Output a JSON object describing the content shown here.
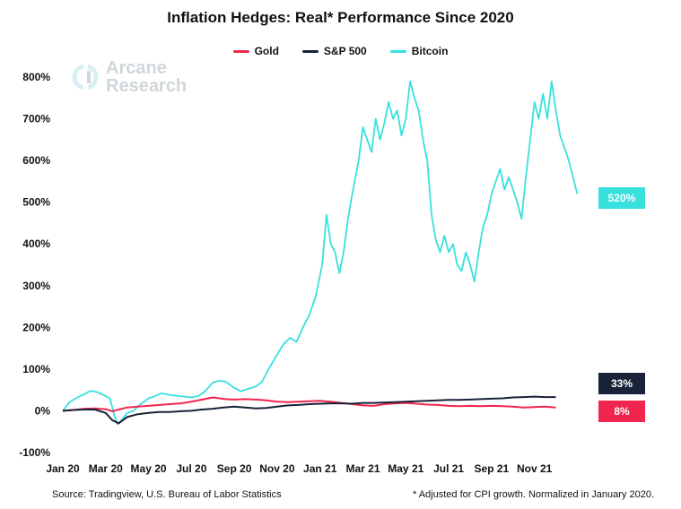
{
  "chart_data": {
    "type": "line",
    "title": "Inflation Hedges: Real* Performance Since 2020",
    "xlabel": "",
    "ylabel": "",
    "ylim": [
      -100,
      800
    ],
    "y_ticks": [
      -100,
      0,
      100,
      200,
      300,
      400,
      500,
      600,
      700,
      800
    ],
    "y_tick_labels": [
      "-100%",
      "0%",
      "100%",
      "200%",
      "300%",
      "400%",
      "500%",
      "600%",
      "700%",
      "800%"
    ],
    "x_tick_labels": [
      "Jan 20",
      "Mar 20",
      "May 20",
      "Jul 20",
      "Sep 20",
      "Nov 20",
      "Jan 21",
      "Mar 21",
      "May 21",
      "Jul 21",
      "Sep 21",
      "Nov 21"
    ],
    "x_tick_months": [
      0,
      2,
      4,
      6,
      8,
      10,
      12,
      14,
      16,
      18,
      20,
      22
    ],
    "x_range_months": [
      0,
      23.1
    ],
    "legend_position": "top-center",
    "series": [
      {
        "name": "Gold",
        "color": "#f0264f",
        "end_label": "8%",
        "points": [
          [
            0,
            0
          ],
          [
            0.5,
            2
          ],
          [
            1,
            5
          ],
          [
            1.5,
            6
          ],
          [
            2,
            4
          ],
          [
            2.3,
            -1
          ],
          [
            2.6,
            3
          ],
          [
            3,
            8
          ],
          [
            3.5,
            10
          ],
          [
            4,
            12
          ],
          [
            4.5,
            14
          ],
          [
            5,
            16
          ],
          [
            5.5,
            18
          ],
          [
            6,
            22
          ],
          [
            6.5,
            27
          ],
          [
            7,
            32
          ],
          [
            7.3,
            30
          ],
          [
            7.6,
            28
          ],
          [
            8,
            27
          ],
          [
            8.5,
            28
          ],
          [
            9,
            27
          ],
          [
            9.5,
            25
          ],
          [
            10,
            22
          ],
          [
            10.5,
            21
          ],
          [
            11,
            22
          ],
          [
            11.5,
            23
          ],
          [
            12,
            24
          ],
          [
            12.5,
            22
          ],
          [
            13,
            19
          ],
          [
            13.5,
            16
          ],
          [
            14,
            13
          ],
          [
            14.5,
            12
          ],
          [
            15,
            16
          ],
          [
            15.5,
            18
          ],
          [
            16,
            19
          ],
          [
            16.5,
            17
          ],
          [
            17,
            15
          ],
          [
            17.5,
            14
          ],
          [
            18,
            12
          ],
          [
            18.5,
            11
          ],
          [
            19,
            12
          ],
          [
            19.5,
            11
          ],
          [
            20,
            12
          ],
          [
            20.5,
            11
          ],
          [
            21,
            10
          ],
          [
            21.5,
            8
          ],
          [
            22,
            9
          ],
          [
            22.5,
            10
          ],
          [
            23,
            8
          ]
        ]
      },
      {
        "name": "S&P 500",
        "color": "#182238",
        "end_label": "33%",
        "points": [
          [
            0,
            0
          ],
          [
            0.5,
            2
          ],
          [
            1,
            3
          ],
          [
            1.5,
            3
          ],
          [
            2,
            -5
          ],
          [
            2.3,
            -22
          ],
          [
            2.6,
            -30
          ],
          [
            3,
            -15
          ],
          [
            3.5,
            -8
          ],
          [
            4,
            -5
          ],
          [
            4.5,
            -3
          ],
          [
            5,
            -3
          ],
          [
            5.5,
            -1
          ],
          [
            6,
            0
          ],
          [
            6.5,
            3
          ],
          [
            7,
            5
          ],
          [
            7.5,
            8
          ],
          [
            8,
            10
          ],
          [
            8.5,
            8
          ],
          [
            9,
            6
          ],
          [
            9.5,
            7
          ],
          [
            10,
            10
          ],
          [
            10.5,
            13
          ],
          [
            11,
            14
          ],
          [
            11.5,
            16
          ],
          [
            12,
            17
          ],
          [
            12.5,
            18
          ],
          [
            13,
            18
          ],
          [
            13.5,
            17
          ],
          [
            14,
            19
          ],
          [
            14.5,
            19
          ],
          [
            15,
            20
          ],
          [
            15.5,
            21
          ],
          [
            16,
            22
          ],
          [
            16.5,
            23
          ],
          [
            17,
            24
          ],
          [
            17.5,
            25
          ],
          [
            18,
            26
          ],
          [
            18.5,
            26
          ],
          [
            19,
            27
          ],
          [
            19.5,
            28
          ],
          [
            20,
            29
          ],
          [
            20.5,
            30
          ],
          [
            21,
            32
          ],
          [
            21.5,
            33
          ],
          [
            22,
            34
          ],
          [
            22.5,
            33
          ],
          [
            23,
            33
          ]
        ]
      },
      {
        "name": "Bitcoin",
        "color": "#38e0de",
        "end_label": "520%",
        "points": [
          [
            0,
            0
          ],
          [
            0.3,
            20
          ],
          [
            0.6,
            30
          ],
          [
            1,
            40
          ],
          [
            1.3,
            48
          ],
          [
            1.6,
            45
          ],
          [
            1.9,
            38
          ],
          [
            2.2,
            30
          ],
          [
            2.4,
            -10
          ],
          [
            2.55,
            -32
          ],
          [
            2.7,
            -25
          ],
          [
            3,
            -5
          ],
          [
            3.3,
            0
          ],
          [
            3.6,
            15
          ],
          [
            4,
            30
          ],
          [
            4.3,
            35
          ],
          [
            4.6,
            42
          ],
          [
            5,
            38
          ],
          [
            5.5,
            35
          ],
          [
            6,
            32
          ],
          [
            6.3,
            35
          ],
          [
            6.6,
            45
          ],
          [
            7,
            68
          ],
          [
            7.3,
            72
          ],
          [
            7.6,
            70
          ],
          [
            8,
            55
          ],
          [
            8.3,
            47
          ],
          [
            8.6,
            52
          ],
          [
            9,
            58
          ],
          [
            9.3,
            70
          ],
          [
            9.6,
            100
          ],
          [
            10,
            135
          ],
          [
            10.3,
            160
          ],
          [
            10.6,
            175
          ],
          [
            10.9,
            165
          ],
          [
            11.2,
            200
          ],
          [
            11.5,
            230
          ],
          [
            11.8,
            275
          ],
          [
            12.1,
            350
          ],
          [
            12.3,
            470
          ],
          [
            12.5,
            400
          ],
          [
            12.7,
            380
          ],
          [
            12.9,
            330
          ],
          [
            13.1,
            380
          ],
          [
            13.3,
            460
          ],
          [
            13.5,
            520
          ],
          [
            13.8,
            600
          ],
          [
            14,
            680
          ],
          [
            14.2,
            650
          ],
          [
            14.4,
            620
          ],
          [
            14.6,
            700
          ],
          [
            14.8,
            650
          ],
          [
            15,
            690
          ],
          [
            15.2,
            740
          ],
          [
            15.4,
            700
          ],
          [
            15.6,
            720
          ],
          [
            15.8,
            660
          ],
          [
            16,
            700
          ],
          [
            16.2,
            790
          ],
          [
            16.4,
            750
          ],
          [
            16.6,
            720
          ],
          [
            16.8,
            650
          ],
          [
            17,
            600
          ],
          [
            17.2,
            470
          ],
          [
            17.4,
            410
          ],
          [
            17.6,
            380
          ],
          [
            17.8,
            420
          ],
          [
            18,
            380
          ],
          [
            18.2,
            400
          ],
          [
            18.4,
            350
          ],
          [
            18.6,
            335
          ],
          [
            18.8,
            380
          ],
          [
            19,
            350
          ],
          [
            19.2,
            310
          ],
          [
            19.4,
            380
          ],
          [
            19.6,
            440
          ],
          [
            19.8,
            470
          ],
          [
            20,
            520
          ],
          [
            20.2,
            550
          ],
          [
            20.4,
            580
          ],
          [
            20.6,
            530
          ],
          [
            20.8,
            560
          ],
          [
            21,
            530
          ],
          [
            21.2,
            500
          ],
          [
            21.4,
            460
          ],
          [
            21.6,
            560
          ],
          [
            21.8,
            650
          ],
          [
            22,
            740
          ],
          [
            22.2,
            700
          ],
          [
            22.4,
            760
          ],
          [
            22.6,
            700
          ],
          [
            22.8,
            790
          ],
          [
            23,
            720
          ],
          [
            23.2,
            660
          ],
          [
            23.4,
            630
          ],
          [
            23.6,
            600
          ],
          [
            23.8,
            560
          ],
          [
            24,
            520
          ]
        ]
      }
    ]
  },
  "logo": {
    "line1": "Arcane",
    "line2": "Research"
  },
  "footer": {
    "source": "Source: Tradingview, U.S. Bureau of Labor Statistics",
    "note": "* Adjusted for CPI growth. Normalized in January 2020."
  }
}
